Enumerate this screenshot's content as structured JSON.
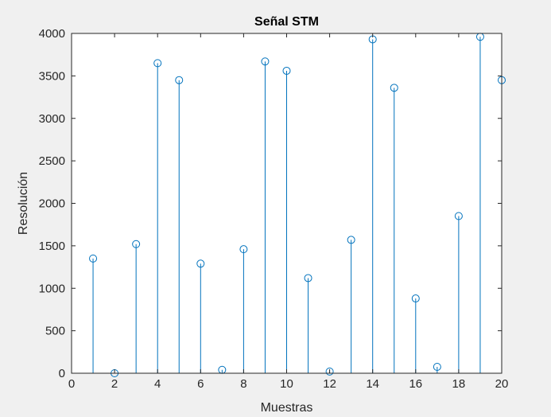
{
  "chart_data": {
    "type": "stem",
    "title": "Señal STM",
    "xlabel": "Muestras",
    "ylabel": "Resolución",
    "xlim": [
      0,
      20
    ],
    "ylim": [
      0,
      4000
    ],
    "xticks": [
      0,
      2,
      4,
      6,
      8,
      10,
      12,
      14,
      16,
      18,
      20
    ],
    "yticks": [
      0,
      500,
      1000,
      1500,
      2000,
      2500,
      3000,
      3500,
      4000
    ],
    "grid": false,
    "marker": "circle",
    "color": "#0072bd",
    "series": [
      {
        "x": [
          1,
          2,
          3,
          4,
          5,
          6,
          7,
          8,
          9,
          10,
          11,
          12,
          13,
          14,
          15,
          16,
          17,
          18,
          19,
          20
        ],
        "values": [
          1350,
          0,
          1520,
          3650,
          3450,
          1290,
          40,
          1460,
          3670,
          3560,
          1120,
          20,
          1570,
          3930,
          3360,
          880,
          75,
          1850,
          3960,
          3450
        ]
      }
    ]
  }
}
